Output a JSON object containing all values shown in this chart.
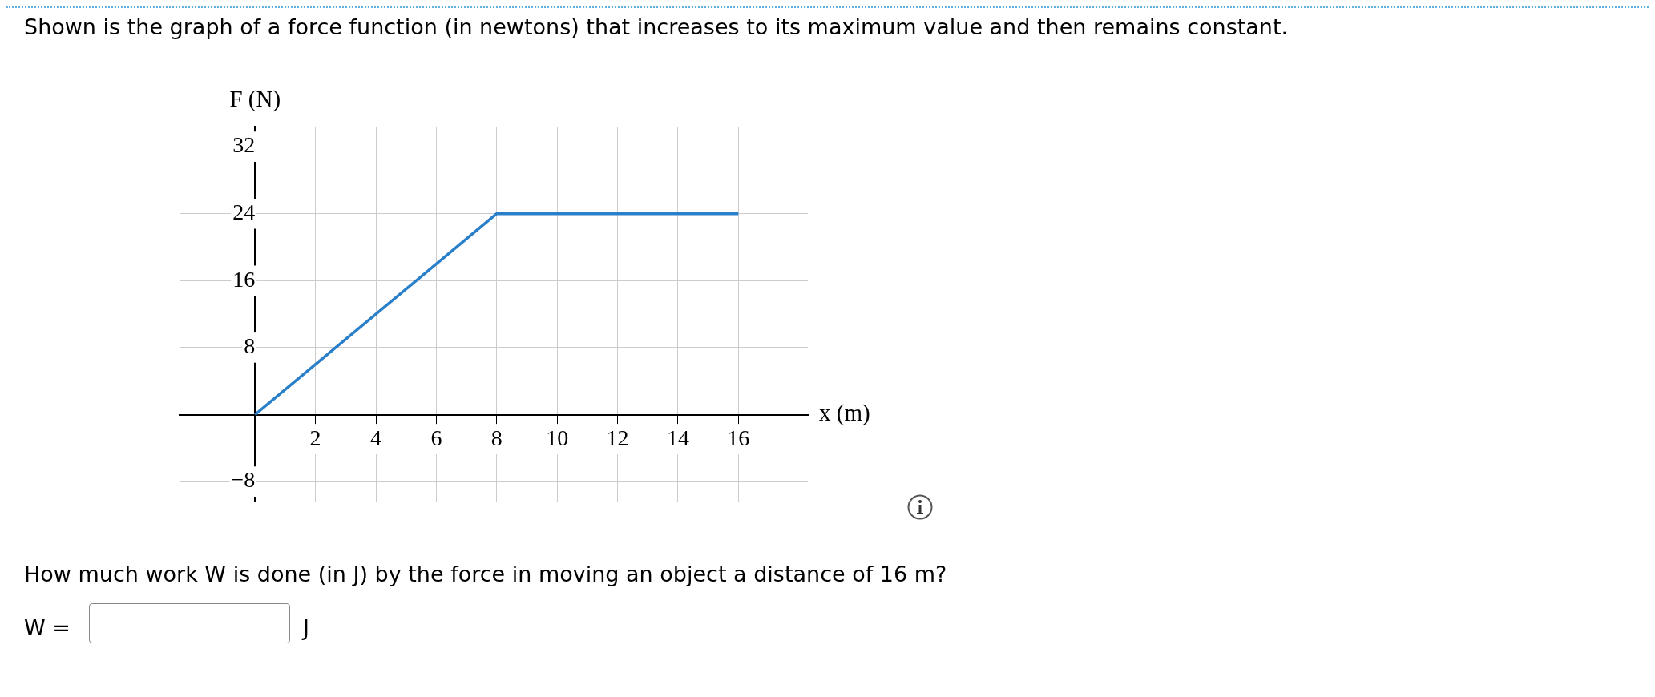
{
  "chart_data": {
    "type": "line",
    "title": "Shown is the graph of a force function (in newtons) that increases to its maximum value and then remains constant.",
    "xlabel": "x (m)",
    "ylabel": "F (N)",
    "x": [
      0,
      8,
      16
    ],
    "series": [
      {
        "color": "#2a7fc9",
        "values": [
          0,
          24,
          24
        ]
      }
    ],
    "xlim": [
      -2.5,
      18.3
    ],
    "xticks": [
      2,
      4,
      6,
      8,
      10,
      12,
      14,
      16
    ],
    "ylim": [
      -10.4,
      34.4
    ],
    "yticks": [
      -8,
      8,
      16,
      24,
      32
    ],
    "grid": true,
    "legend": false,
    "marker": "none",
    "line_style": "solid",
    "annotations": [
      "How much work W is done (in J) by the force in moving an object a distance of 16 m?",
      "W =",
      "J"
    ]
  }
}
